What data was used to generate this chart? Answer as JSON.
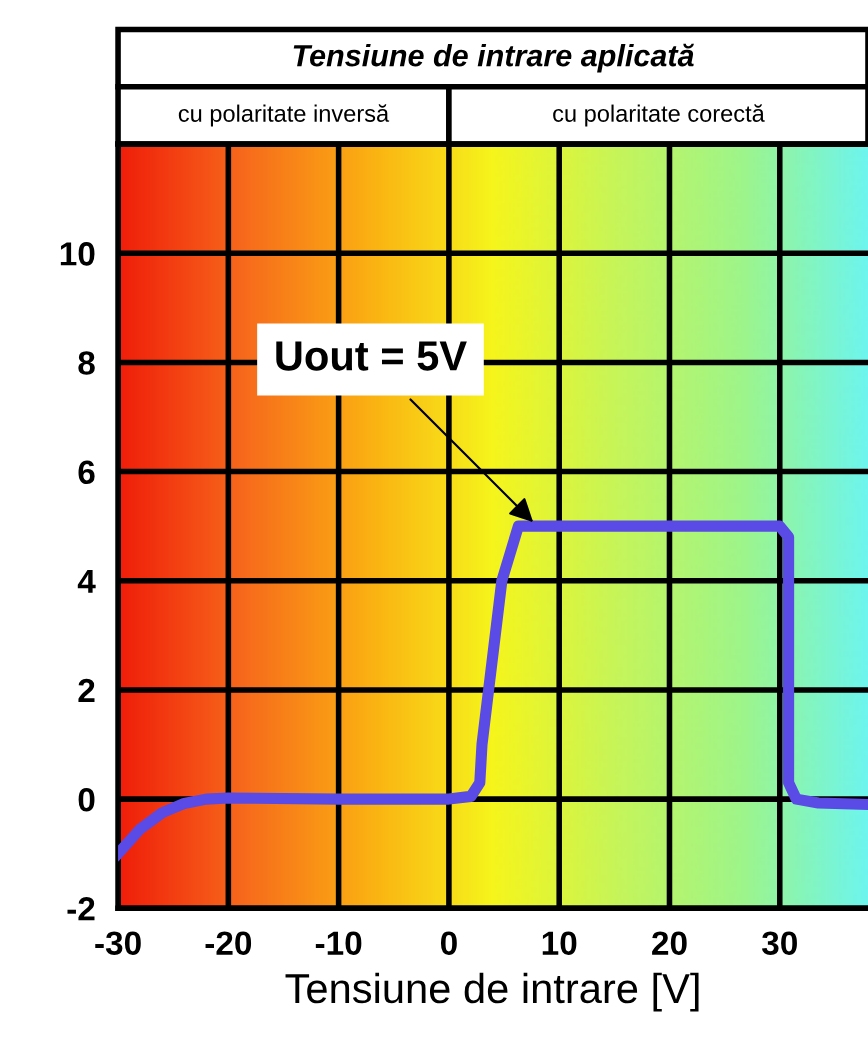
{
  "chart_data": {
    "type": "line",
    "title": "Tensiune de intrare aplicată",
    "xlabel": "Tensiune de intrare [V]",
    "x": [
      -30,
      -28,
      -26,
      -24,
      -22,
      -20,
      -10,
      0,
      2,
      2.8,
      3,
      3.6,
      4.8,
      6.3,
      10,
      20,
      30,
      30.8,
      30.8,
      31.5,
      33.5,
      38
    ],
    "series": [
      {
        "color": "#5a4be6",
        "values": [
          -1,
          -0.55,
          -0.25,
          -0.08,
          0,
          0.02,
          0,
          0,
          0.05,
          0.3,
          1,
          2,
          4,
          5,
          5,
          5,
          5,
          4.8,
          0.3,
          0,
          -0.07,
          -0.1
        ]
      }
    ],
    "xlim": [
      -30,
      38
    ],
    "ylim": [
      -2,
      12
    ],
    "xticks": [
      -30,
      -20,
      -10,
      0,
      10,
      20,
      30
    ],
    "yticks": [
      -2,
      0,
      2,
      4,
      6,
      8,
      10
    ],
    "grid": true,
    "marker": "none",
    "line_style": "solid",
    "annotations": [
      {
        "text": "Uout = 5V",
        "x": 8,
        "y": 5
      },
      "cu polaritate inversă",
      "cu polaritate corectă"
    ]
  }
}
